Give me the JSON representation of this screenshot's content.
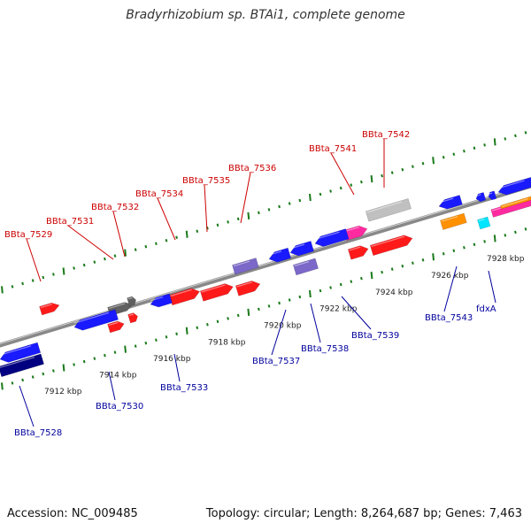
{
  "title": "Bradyrhizobium sp. BTAi1, complete genome",
  "footer": {
    "accession": "Accession: NC_009485",
    "summary": "Topology: circular; Length: 8,264,687 bp; Genes: 7,463"
  },
  "scale_labels": [
    "7912 kbp",
    "7914 kbp",
    "7916 kbp",
    "7918 kbp",
    "7920 kbp",
    "7922 kbp",
    "7924 kbp",
    "7926 kbp",
    "7928 kbp"
  ],
  "gene_labels_top": [
    "BBta_7529",
    "BBta_7531",
    "BBta_7532",
    "BBta_7534",
    "BBta_7535",
    "BBta_7536",
    "BBta_7541",
    "BBta_7542"
  ],
  "gene_labels_bottom": [
    "BBta_7528",
    "BBta_7530",
    "BBta_7533",
    "BBta_7537",
    "BBta_7538",
    "BBta_7539",
    "BBta_7543",
    "fdxA"
  ],
  "colors": {
    "top_label": "#cc0000",
    "bottom_label": "#00009c",
    "tick": "#1a7a1a",
    "backbone": "#888888",
    "red": "#ff1a1a",
    "blue": "#1a1aff",
    "navy": "#000080",
    "purple": "#7b68c8",
    "gray": "#606060",
    "lightgray": "#c0c0c0",
    "magenta": "#ff2aa0",
    "orange": "#ff9000",
    "cyan": "#00e5ff"
  }
}
